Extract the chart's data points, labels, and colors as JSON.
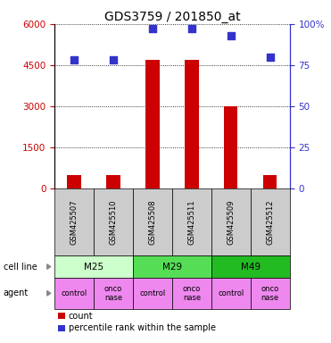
{
  "title": "GDS3759 / 201850_at",
  "samples": [
    "GSM425507",
    "GSM425510",
    "GSM425508",
    "GSM425511",
    "GSM425509",
    "GSM425512"
  ],
  "counts": [
    500,
    500,
    4700,
    4700,
    3000,
    500
  ],
  "percentile_ranks": [
    78,
    78,
    97,
    97,
    93,
    80
  ],
  "left_ylim": [
    0,
    6000
  ],
  "left_yticks": [
    0,
    1500,
    3000,
    4500,
    6000
  ],
  "right_ylim": [
    0,
    100
  ],
  "right_yticks": [
    0,
    25,
    50,
    75,
    100
  ],
  "right_yticklabels": [
    "0",
    "25",
    "50",
    "75",
    "100%"
  ],
  "bar_color": "#cc0000",
  "dot_color": "#3333cc",
  "left_tick_color": "#cc0000",
  "right_tick_color": "#3333cc",
  "cell_lines": [
    {
      "label": "M25",
      "span": [
        0,
        2
      ],
      "color": "#ccffcc"
    },
    {
      "label": "M29",
      "span": [
        2,
        4
      ],
      "color": "#55dd55"
    },
    {
      "label": "M49",
      "span": [
        4,
        6
      ],
      "color": "#22bb22"
    }
  ],
  "agents": [
    {
      "label": "control",
      "span": [
        0,
        1
      ],
      "color": "#ee88ee"
    },
    {
      "label": "onco\nnase",
      "span": [
        1,
        2
      ],
      "color": "#ee88ee"
    },
    {
      "label": "control",
      "span": [
        2,
        3
      ],
      "color": "#ee88ee"
    },
    {
      "label": "onco\nnase",
      "span": [
        3,
        4
      ],
      "color": "#ee88ee"
    },
    {
      "label": "control",
      "span": [
        4,
        5
      ],
      "color": "#ee88ee"
    },
    {
      "label": "onco\nnase",
      "span": [
        5,
        6
      ],
      "color": "#ee88ee"
    }
  ],
  "sample_box_color": "#cccccc",
  "bar_width": 0.35,
  "dot_size": 40,
  "title_fontsize": 10,
  "tick_fontsize": 7.5,
  "sample_fontsize": 6,
  "table_fontsize": 7.5,
  "legend_fontsize": 7
}
